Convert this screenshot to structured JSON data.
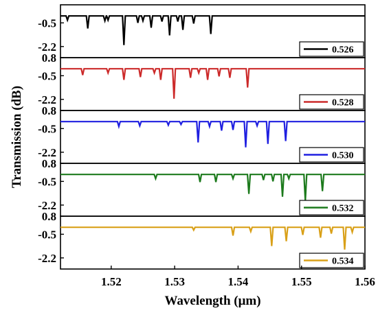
{
  "chart_data": {
    "type": "line",
    "xlabel": "Wavelength (μm)",
    "ylabel": "Transmission (dB)",
    "xlim": [
      1.512,
      1.56
    ],
    "x_ticks": [
      "1.52",
      "1.53",
      "1.54",
      "1.55",
      "1.56"
    ],
    "x_tick_values": [
      1.52,
      1.53,
      1.54,
      1.55,
      1.56
    ],
    "ylim": [
      -3.0,
      0.8
    ],
    "y_ticks": [
      "0.8",
      "-0.5",
      "-2.2"
    ],
    "y_tick_values": [
      0.8,
      -0.5,
      -2.2
    ],
    "baseline": 0.0,
    "grid": false,
    "legend": "bottom-right of each panel",
    "panels": [
      {
        "name": "0.526",
        "color": "#000000",
        "y_ticks": [
          "-0.5",
          "-2.2"
        ],
        "dips": [
          [
            1.5131,
            -0.3
          ],
          [
            1.5163,
            -0.9
          ],
          [
            1.519,
            -0.35
          ],
          [
            1.5195,
            -0.3
          ],
          [
            1.522,
            -2.1
          ],
          [
            1.5242,
            -0.5
          ],
          [
            1.525,
            -0.35
          ],
          [
            1.5263,
            -0.85
          ],
          [
            1.528,
            -0.4
          ],
          [
            1.5292,
            -1.4
          ],
          [
            1.5305,
            -0.4
          ],
          [
            1.5313,
            -1.0
          ],
          [
            1.533,
            -0.55
          ],
          [
            1.5357,
            -1.3
          ]
        ]
      },
      {
        "name": "0.528",
        "color": "#cc2a2a",
        "y_ticks": [
          "0.8",
          "-0.5",
          "-2.2"
        ],
        "dips": [
          [
            1.5155,
            -0.45
          ],
          [
            1.5195,
            -0.3
          ],
          [
            1.522,
            -0.8
          ],
          [
            1.5246,
            -0.6
          ],
          [
            1.5268,
            -0.3
          ],
          [
            1.5278,
            -0.8
          ],
          [
            1.5299,
            -2.15
          ],
          [
            1.5325,
            -0.65
          ],
          [
            1.5338,
            -0.3
          ],
          [
            1.5352,
            -0.8
          ],
          [
            1.537,
            -0.55
          ],
          [
            1.5387,
            -0.65
          ],
          [
            1.5415,
            -1.35
          ]
        ]
      },
      {
        "name": "0.530",
        "color": "#1f1fe0",
        "y_ticks": [
          "0.8",
          "-0.5",
          "-2.2"
        ],
        "dips": [
          [
            1.5212,
            -0.35
          ],
          [
            1.5245,
            -0.3
          ],
          [
            1.529,
            -0.25
          ],
          [
            1.531,
            -0.2
          ],
          [
            1.5337,
            -1.5
          ],
          [
            1.5355,
            -0.35
          ],
          [
            1.5374,
            -0.65
          ],
          [
            1.5392,
            -0.6
          ],
          [
            1.5412,
            -1.85
          ],
          [
            1.543,
            -0.3
          ],
          [
            1.5447,
            -1.6
          ],
          [
            1.5475,
            -1.4
          ]
        ]
      },
      {
        "name": "0.532",
        "color": "#1c7a1c",
        "y_ticks": [
          "0.8",
          "-0.5",
          "-2.2"
        ],
        "dips": [
          [
            1.527,
            -0.3
          ],
          [
            1.534,
            -0.55
          ],
          [
            1.5365,
            -0.55
          ],
          [
            1.5392,
            -0.3
          ],
          [
            1.5417,
            -1.4
          ],
          [
            1.544,
            -0.4
          ],
          [
            1.5455,
            -0.5
          ],
          [
            1.547,
            -1.6
          ],
          [
            1.548,
            -0.3
          ],
          [
            1.5506,
            -1.9
          ],
          [
            1.5533,
            -1.2
          ]
        ]
      },
      {
        "name": "0.534",
        "color": "#d9a018",
        "y_ticks": [
          "0.8",
          "-0.5",
          "-2.2"
        ],
        "dips": [
          [
            1.533,
            -0.2
          ],
          [
            1.5392,
            -0.6
          ],
          [
            1.542,
            -0.3
          ],
          [
            1.5453,
            -1.35
          ],
          [
            1.5476,
            -1.0
          ],
          [
            1.5502,
            -0.55
          ],
          [
            1.553,
            -0.75
          ],
          [
            1.5547,
            -0.45
          ],
          [
            1.5568,
            -1.6
          ],
          [
            1.558,
            -0.35
          ]
        ]
      }
    ]
  }
}
